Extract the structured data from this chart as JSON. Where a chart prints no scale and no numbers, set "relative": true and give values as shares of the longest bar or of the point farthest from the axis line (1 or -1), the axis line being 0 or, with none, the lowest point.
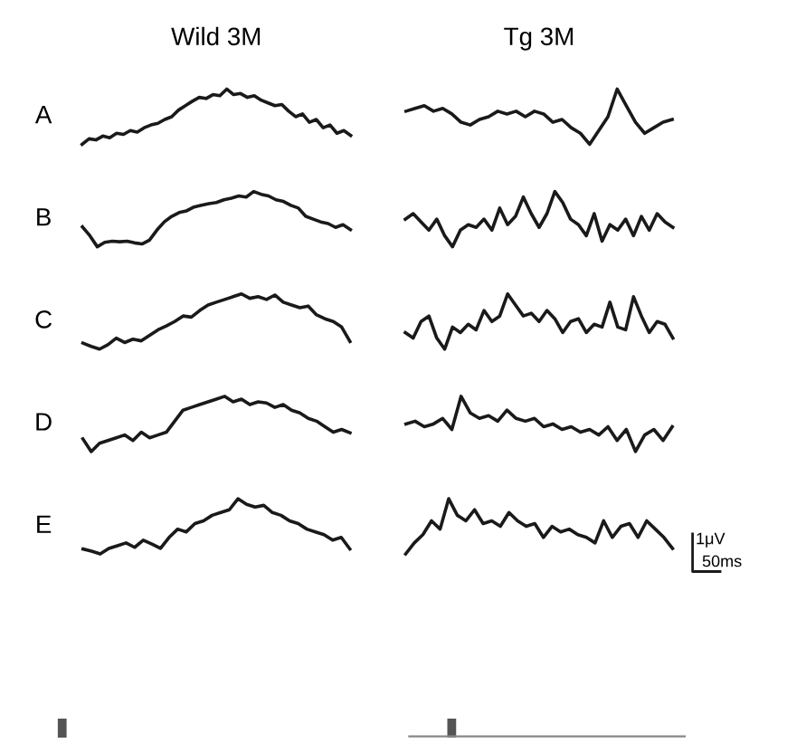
{
  "chart_data": [
    {
      "type": "line",
      "relative": true,
      "title": "Wild 3M",
      "ylabel": "A",
      "color": "#1a1a1a",
      "categories": [
        null,
        null,
        null,
        null,
        null,
        null,
        null,
        null,
        null,
        null,
        null,
        null,
        null,
        null,
        null,
        null,
        null,
        null,
        null,
        null,
        null,
        null,
        null,
        null,
        null,
        null,
        null,
        null,
        null,
        null,
        null,
        null,
        null,
        null,
        null,
        null,
        null,
        null,
        null,
        null
      ],
      "values": [
        0.0,
        0.1,
        0.08,
        0.15,
        0.12,
        0.2,
        0.18,
        0.25,
        0.22,
        0.3,
        0.35,
        0.38,
        0.45,
        0.5,
        0.62,
        0.7,
        0.78,
        0.85,
        0.83,
        0.9,
        0.88,
        1.0,
        0.9,
        0.92,
        0.85,
        0.88,
        0.8,
        0.75,
        0.7,
        0.72,
        0.6,
        0.5,
        0.55,
        0.4,
        0.45,
        0.3,
        0.35,
        0.2,
        0.25,
        0.16
      ]
    },
    {
      "type": "line",
      "relative": true,
      "title": "Tg 3M",
      "color": "#1a1a1a",
      "categories": [
        null,
        null,
        null,
        null,
        null,
        null,
        null,
        null,
        null,
        null,
        null,
        null,
        null,
        null,
        null,
        null,
        null,
        null,
        null,
        null,
        null,
        null,
        null,
        null,
        null,
        null,
        null,
        null,
        null,
        null
      ],
      "values": [
        0.6,
        0.65,
        0.7,
        0.6,
        0.65,
        0.55,
        0.4,
        0.35,
        0.45,
        0.5,
        0.6,
        0.55,
        0.6,
        0.5,
        0.6,
        0.55,
        0.4,
        0.45,
        0.3,
        0.2,
        0.0,
        0.25,
        0.5,
        1.0,
        0.7,
        0.4,
        0.2,
        0.3,
        0.4,
        0.45
      ]
    },
    {
      "type": "line",
      "relative": true,
      "ylabel": "B",
      "color": "#1a1a1a",
      "categories": [
        null,
        null,
        null,
        null,
        null,
        null,
        null,
        null,
        null,
        null,
        null,
        null,
        null,
        null,
        null,
        null,
        null,
        null,
        null,
        null,
        null,
        null,
        null,
        null,
        null,
        null,
        null,
        null,
        null,
        null,
        null,
        null,
        null,
        null,
        null,
        null,
        null
      ],
      "values": [
        0.36,
        0.2,
        0.0,
        0.08,
        0.1,
        0.09,
        0.1,
        0.07,
        0.05,
        0.12,
        0.3,
        0.45,
        0.55,
        0.62,
        0.65,
        0.72,
        0.75,
        0.78,
        0.8,
        0.85,
        0.88,
        0.92,
        0.9,
        1.0,
        0.95,
        0.92,
        0.85,
        0.82,
        0.75,
        0.7,
        0.55,
        0.5,
        0.45,
        0.42,
        0.35,
        0.4,
        0.31
      ]
    },
    {
      "type": "line",
      "relative": true,
      "color": "#1a1a1a",
      "categories": [
        null,
        null,
        null,
        null,
        null,
        null,
        null,
        null,
        null,
        null,
        null,
        null,
        null,
        null,
        null,
        null,
        null,
        null,
        null,
        null,
        null,
        null,
        null,
        null,
        null,
        null,
        null,
        null,
        null,
        null,
        null,
        null,
        null,
        null,
        null
      ],
      "values": [
        0.5,
        0.6,
        0.45,
        0.3,
        0.5,
        0.2,
        0.0,
        0.3,
        0.4,
        0.35,
        0.5,
        0.3,
        0.7,
        0.4,
        0.55,
        0.9,
        0.6,
        0.35,
        0.6,
        1.0,
        0.8,
        0.5,
        0.4,
        0.2,
        0.6,
        0.1,
        0.4,
        0.3,
        0.5,
        0.2,
        0.55,
        0.3,
        0.6,
        0.45,
        0.35
      ]
    },
    {
      "type": "line",
      "relative": true,
      "ylabel": "C",
      "color": "#1a1a1a",
      "categories": [
        null,
        null,
        null,
        null,
        null,
        null,
        null,
        null,
        null,
        null,
        null,
        null,
        null,
        null,
        null,
        null,
        null,
        null,
        null,
        null,
        null,
        null,
        null,
        null,
        null,
        null,
        null,
        null,
        null,
        null,
        null,
        null,
        null
      ],
      "values": [
        0.11,
        0.05,
        0.0,
        0.08,
        0.2,
        0.12,
        0.18,
        0.15,
        0.25,
        0.35,
        0.42,
        0.5,
        0.6,
        0.58,
        0.7,
        0.8,
        0.85,
        0.9,
        0.95,
        1.0,
        0.92,
        0.95,
        0.9,
        0.98,
        0.85,
        0.8,
        0.75,
        0.78,
        0.62,
        0.55,
        0.5,
        0.4,
        0.14
      ]
    },
    {
      "type": "line",
      "relative": true,
      "color": "#1a1a1a",
      "categories": [
        null,
        null,
        null,
        null,
        null,
        null,
        null,
        null,
        null,
        null,
        null,
        null,
        null,
        null,
        null,
        null,
        null,
        null,
        null,
        null,
        null,
        null,
        null,
        null,
        null,
        null,
        null,
        null,
        null,
        null,
        null,
        null,
        null,
        null,
        null
      ],
      "values": [
        0.3,
        0.2,
        0.5,
        0.6,
        0.2,
        0.0,
        0.4,
        0.3,
        0.45,
        0.35,
        0.7,
        0.5,
        0.6,
        1.0,
        0.8,
        0.6,
        0.65,
        0.5,
        0.7,
        0.55,
        0.3,
        0.5,
        0.55,
        0.3,
        0.45,
        0.4,
        0.85,
        0.4,
        0.35,
        0.95,
        0.6,
        0.3,
        0.5,
        0.45,
        0.2
      ]
    },
    {
      "type": "line",
      "relative": true,
      "ylabel": "D",
      "color": "#1a1a1a",
      "categories": [
        null,
        null,
        null,
        null,
        null,
        null,
        null,
        null,
        null,
        null,
        null,
        null,
        null,
        null,
        null,
        null,
        null,
        null,
        null,
        null,
        null,
        null,
        null,
        null,
        null,
        null,
        null,
        null,
        null,
        null,
        null,
        null,
        null
      ],
      "values": [
        0.23,
        0.0,
        0.15,
        0.2,
        0.25,
        0.3,
        0.2,
        0.35,
        0.25,
        0.3,
        0.35,
        0.55,
        0.75,
        0.8,
        0.85,
        0.9,
        0.95,
        1.0,
        0.9,
        0.95,
        0.85,
        0.9,
        0.88,
        0.8,
        0.85,
        0.75,
        0.7,
        0.6,
        0.55,
        0.45,
        0.35,
        0.4,
        0.34
      ]
    },
    {
      "type": "line",
      "relative": true,
      "color": "#1a1a1a",
      "categories": [
        null,
        null,
        null,
        null,
        null,
        null,
        null,
        null,
        null,
        null,
        null,
        null,
        null,
        null,
        null,
        null,
        null,
        null,
        null,
        null,
        null,
        null,
        null,
        null,
        null,
        null,
        null,
        null,
        null,
        null
      ],
      "values": [
        0.5,
        0.55,
        0.45,
        0.5,
        0.6,
        0.4,
        1.0,
        0.7,
        0.6,
        0.65,
        0.55,
        0.75,
        0.6,
        0.55,
        0.6,
        0.45,
        0.5,
        0.4,
        0.45,
        0.35,
        0.4,
        0.3,
        0.45,
        0.2,
        0.4,
        0.0,
        0.3,
        0.4,
        0.2,
        0.45
      ]
    },
    {
      "type": "line",
      "relative": true,
      "ylabel": "E",
      "color": "#1a1a1a",
      "categories": [
        null,
        null,
        null,
        null,
        null,
        null,
        null,
        null,
        null,
        null,
        null,
        null,
        null,
        null,
        null,
        null,
        null,
        null,
        null,
        null,
        null,
        null,
        null,
        null,
        null,
        null,
        null,
        null,
        null,
        null,
        null,
        null
      ],
      "values": [
        0.09,
        0.05,
        0.0,
        0.1,
        0.15,
        0.2,
        0.12,
        0.25,
        0.18,
        0.1,
        0.3,
        0.45,
        0.4,
        0.55,
        0.6,
        0.7,
        0.75,
        0.8,
        1.0,
        0.9,
        0.85,
        0.88,
        0.75,
        0.7,
        0.6,
        0.55,
        0.45,
        0.4,
        0.35,
        0.25,
        0.3,
        0.09
      ]
    },
    {
      "type": "line",
      "relative": true,
      "color": "#1a1a1a",
      "annotations": [
        "1μV",
        "50ms"
      ],
      "categories": [
        null,
        null,
        null,
        null,
        null,
        null,
        null,
        null,
        null,
        null,
        null,
        null,
        null,
        null,
        null,
        null,
        null,
        null,
        null,
        null,
        null,
        null,
        null,
        null,
        null,
        null,
        null,
        null,
        null,
        null,
        null,
        null
      ],
      "values": [
        0.0,
        0.2,
        0.35,
        0.6,
        0.45,
        1.0,
        0.7,
        0.6,
        0.8,
        0.55,
        0.6,
        0.5,
        0.75,
        0.6,
        0.5,
        0.55,
        0.3,
        0.5,
        0.4,
        0.45,
        0.35,
        0.3,
        0.2,
        0.6,
        0.3,
        0.5,
        0.55,
        0.3,
        0.6,
        0.45,
        0.3,
        0.1
      ]
    }
  ]
}
